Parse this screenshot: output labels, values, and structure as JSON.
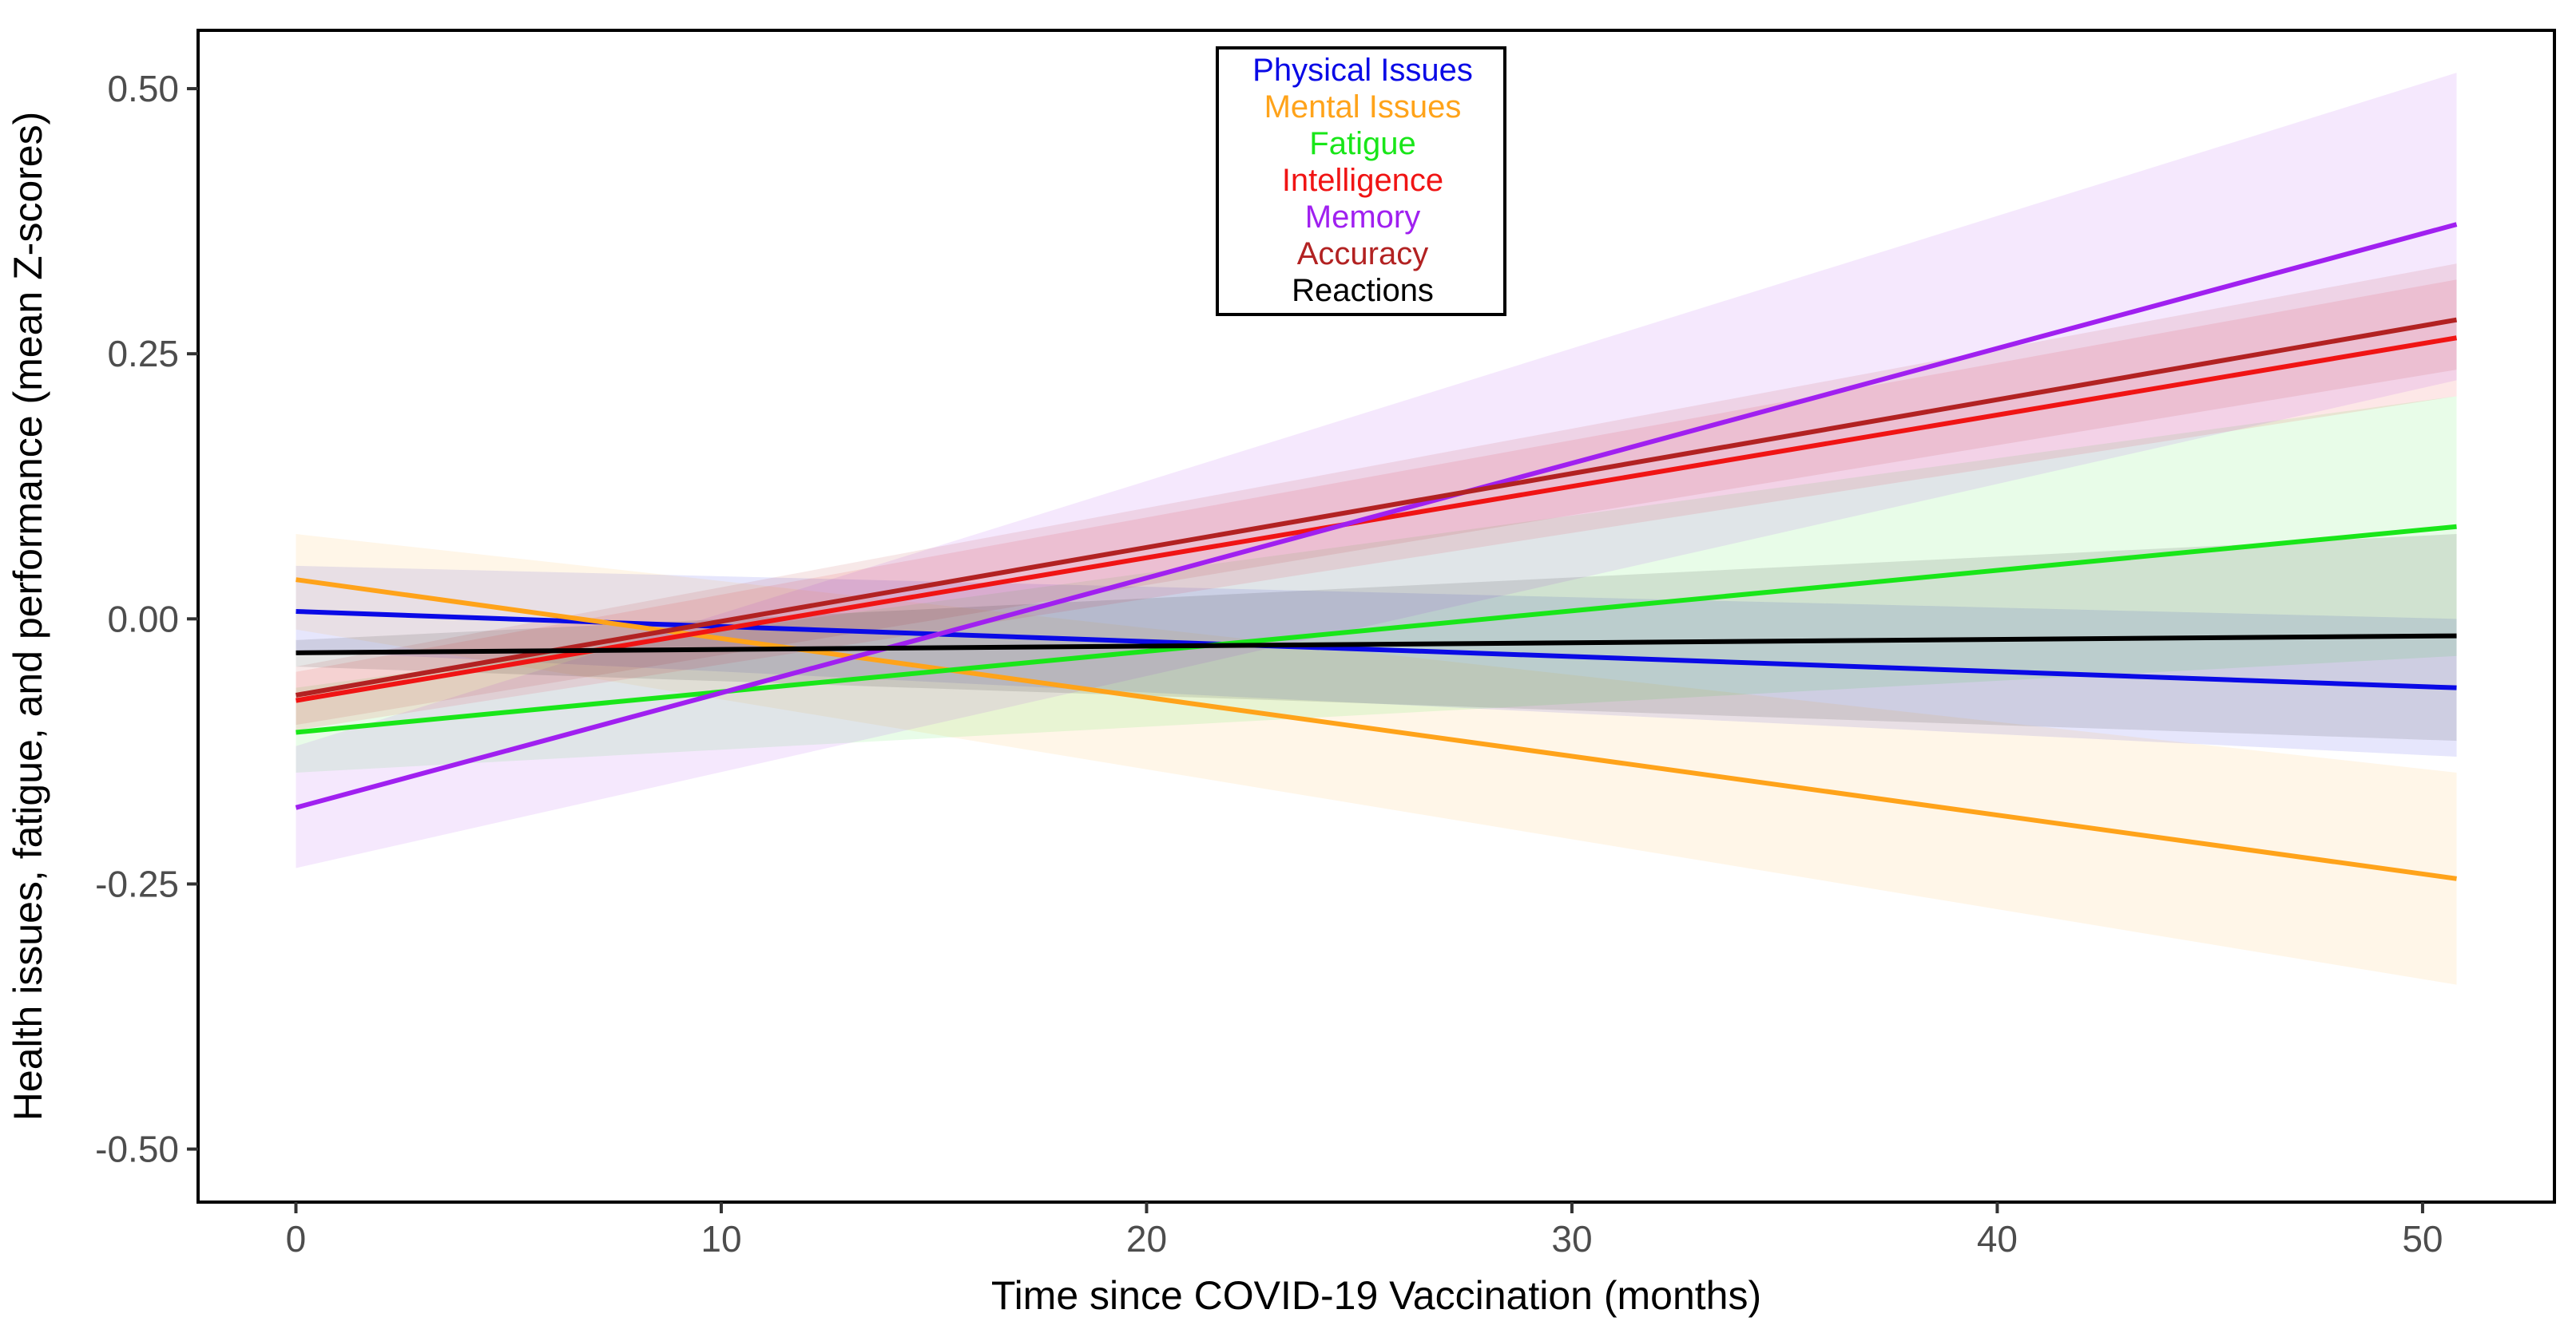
{
  "chart_data": {
    "type": "line",
    "title": "",
    "xlabel": "Time since COVID-19 Vaccination (months)",
    "ylabel": "Health issues, fatigue, and performance (mean Z-scores)",
    "xlim": [
      -2.3,
      53.1
    ],
    "ylim": [
      -0.55,
      0.555
    ],
    "xticks": [
      0,
      10,
      20,
      30,
      40,
      50
    ],
    "xtick_labels": [
      "0",
      "10",
      "20",
      "30",
      "40",
      "50"
    ],
    "yticks": [
      0.5,
      0.25,
      0,
      -0.25,
      -0.5
    ],
    "ytick_labels": [
      "0.50",
      "0.25",
      "0.00",
      "-0.25",
      "-0.50"
    ],
    "grid": false,
    "legend_position": "top-center",
    "series": [
      {
        "name": "Physical Issues",
        "color": "#0a0ae6",
        "x": [
          0,
          50.8
        ],
        "y": [
          0.007,
          -0.065
        ],
        "ci_lower": [
          -0.03,
          -0.13
        ],
        "ci_upper": [
          0.05,
          0.0
        ]
      },
      {
        "name": "Mental Issues",
        "color": "#ffa31a",
        "x": [
          0,
          50.8
        ],
        "y": [
          0.037,
          -0.245
        ],
        "ci_lower": [
          -0.01,
          -0.345
        ],
        "ci_upper": [
          0.08,
          -0.145
        ]
      },
      {
        "name": "Fatigue",
        "color": "#19e619",
        "x": [
          0,
          50.8
        ],
        "y": [
          -0.107,
          0.087
        ],
        "ci_lower": [
          -0.145,
          -0.035
        ],
        "ci_upper": [
          -0.065,
          0.21
        ]
      },
      {
        "name": "Intelligence",
        "color": "#f01414",
        "x": [
          0,
          50.8
        ],
        "y": [
          -0.077,
          0.265
        ],
        "ci_lower": [
          -0.105,
          0.21
        ],
        "ci_upper": [
          -0.05,
          0.32
        ]
      },
      {
        "name": "Memory",
        "color": "#a020f0",
        "x": [
          0,
          50.8
        ],
        "y": [
          -0.178,
          0.372
        ],
        "ci_lower": [
          -0.235,
          0.225
        ],
        "ci_upper": [
          -0.12,
          0.515
        ]
      },
      {
        "name": "Accuracy",
        "color": "#b22222",
        "x": [
          0,
          50.8
        ],
        "y": [
          -0.072,
          0.282
        ],
        "ci_lower": [
          -0.1,
          0.235
        ],
        "ci_upper": [
          -0.045,
          0.335
        ]
      },
      {
        "name": "Reactions",
        "color": "#000000",
        "x": [
          0,
          50.8
        ],
        "y": [
          -0.032,
          -0.016
        ],
        "ci_lower": [
          -0.045,
          -0.115
        ],
        "ci_upper": [
          -0.02,
          0.08
        ]
      }
    ]
  }
}
